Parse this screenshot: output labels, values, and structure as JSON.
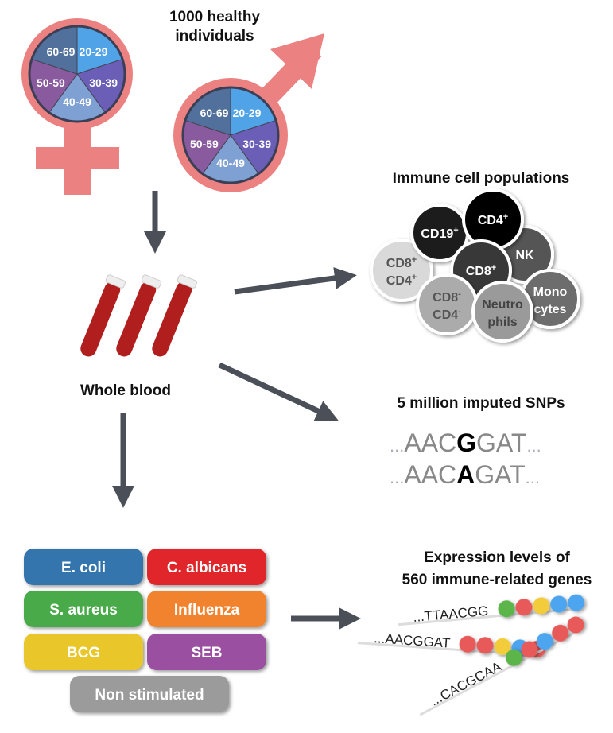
{
  "cohort": {
    "title_line1": "1000 healthy",
    "title_line2": "individuals",
    "age_groups": [
      "20-29",
      "30-39",
      "40-49",
      "50-59",
      "60-69"
    ],
    "age_colors": [
      "#4fa3e6",
      "#6a5eb6",
      "#7fa0d2",
      "#8a5a9e",
      "#51709c"
    ],
    "symbol_color": "#ec8181"
  },
  "blood": {
    "label": "Whole blood",
    "tube_color": "#b01e1e"
  },
  "cells": {
    "title": "Immune cell populations",
    "items": [
      {
        "label": "CD19",
        "sup": "+"
      },
      {
        "label": "CD4",
        "sup": "+"
      },
      {
        "label": "NK",
        "sup": ""
      },
      {
        "label": "CD8",
        "sup": "+",
        "label2": "CD4",
        "sup2": "+"
      },
      {
        "label": "CD8",
        "sup": "+"
      },
      {
        "label": "CD8",
        "sup": "-",
        "label2": "CD4",
        "sup2": "-"
      },
      {
        "label": "Neutro",
        "sup": "",
        "label2": "phils",
        "sup2": ""
      },
      {
        "label": "Mono",
        "sup": "",
        "label2": "cytes",
        "sup2": ""
      }
    ]
  },
  "snps": {
    "title": "5 million imputed SNPs",
    "dots": "...",
    "seq1_pre": "AAC",
    "seq1_var": "G",
    "seq1_post": "GAT",
    "seq2_pre": "AAC",
    "seq2_var": "A",
    "seq2_post": "GAT"
  },
  "stimuli": [
    {
      "label": "E. coli",
      "color": "#3474ad"
    },
    {
      "label": "C. albicans",
      "color": "#e0282a"
    },
    {
      "label": "S. aureus",
      "color": "#4aaa48"
    },
    {
      "label": "Influenza",
      "color": "#f2832e"
    },
    {
      "label": "BCG",
      "color": "#e9c62c"
    },
    {
      "label": "SEB",
      "color": "#9a4fa0"
    },
    {
      "label": "Non stimulated",
      "color": "#9b9b9b"
    }
  ],
  "expression": {
    "title_line1": "Expression levels of",
    "title_line2": "560 immune-related genes",
    "seqs": [
      "...TTAACGG",
      "...AACGGAT",
      "...CACGCAA"
    ],
    "bead_colors": {
      "green": "#5cb548",
      "red": "#e85a5a",
      "yellow": "#f3cc3a",
      "blue": "#4ea4ef"
    }
  }
}
